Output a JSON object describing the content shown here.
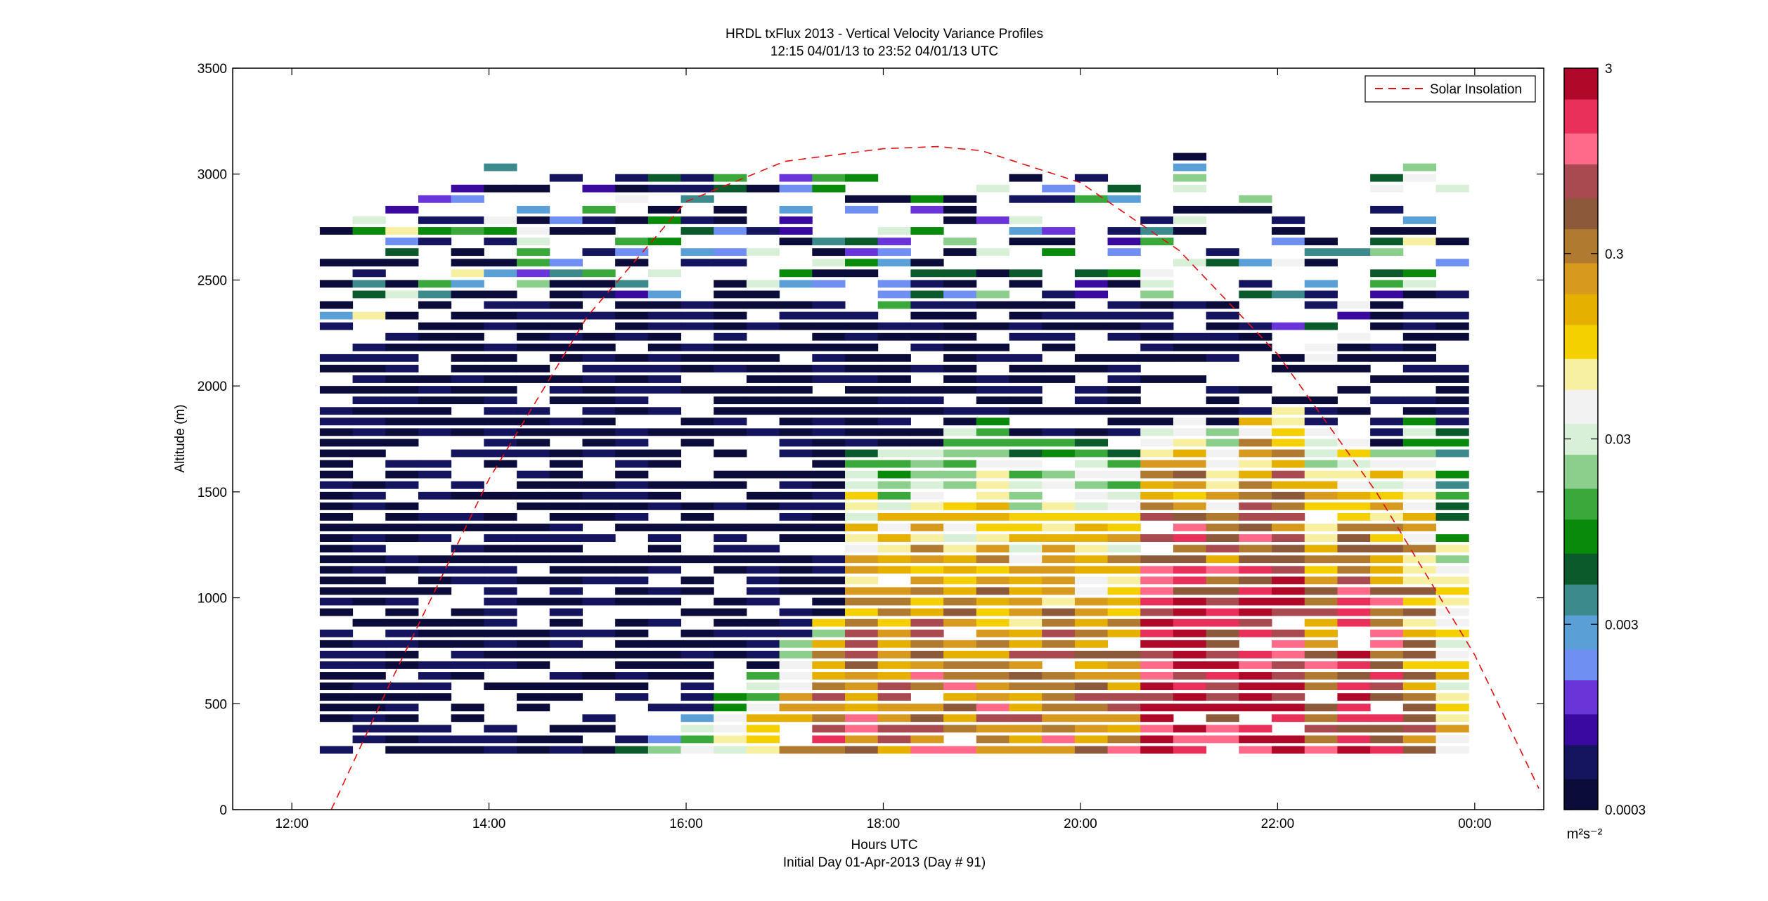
{
  "chart_data": {
    "type": "heatmap",
    "title": "HRDL txFlux 2013 - Vertical Velocity Variance Profiles",
    "subtitle": "12:15 04/01/13 to 23:52 04/01/13  UTC",
    "xlabel": "Hours UTC",
    "xlabel2": "Initial Day 01-Apr-2013 (Day # 91)",
    "ylabel": "Altitude (m)",
    "xlim": [
      11.4,
      24.7
    ],
    "ylim": [
      0,
      3500
    ],
    "x_ticks": [
      12,
      14,
      16,
      18,
      20,
      22,
      24
    ],
    "x_tick_labels": [
      "12:00",
      "14:00",
      "16:00",
      "18:00",
      "20:00",
      "22:00",
      "00:00"
    ],
    "y_ticks": [
      0,
      500,
      1000,
      1500,
      2000,
      2500,
      3000,
      3500
    ],
    "y_tick_labels": [
      "0",
      "500",
      "1000",
      "1500",
      "2000",
      "2500",
      "3000",
      "3500"
    ],
    "grid": false,
    "colorbar": {
      "scale": "log",
      "range": [
        0.0003,
        3
      ],
      "ticks": [
        0.0003,
        0.003,
        0.03,
        0.3,
        3
      ],
      "tick_labels": [
        "0.0003",
        "0.003",
        "0.03",
        "0.3",
        "3"
      ],
      "unit_label": "m²s⁻²",
      "colors": [
        "#0c0c3a",
        "#15145e",
        "#3a0aa0",
        "#6a35d8",
        "#6f8ff2",
        "#5aa0d6",
        "#3d8a8c",
        "#0a5a2c",
        "#0a8a0a",
        "#3aa83a",
        "#8ccf8c",
        "#d8efd8",
        "#f2f2f2",
        "#f7f0a0",
        "#f4d000",
        "#e6b000",
        "#d79a1e",
        "#b07a30",
        "#8c5a3a",
        "#a84a50",
        "#ff6a8a",
        "#e8305a",
        "#b00828"
      ]
    },
    "profiles": {
      "x_start": 12.45,
      "x_step": 0.333,
      "z_start": 250,
      "z_step": 50,
      "max_tops": [
        2750,
        2800,
        2850,
        2950,
        2950,
        3050,
        2950,
        3100,
        3000,
        3000,
        3000,
        3000,
        3050,
        3050,
        3000,
        3000,
        3000,
        2950,
        2950,
        3000,
        3000,
        3000,
        3050,
        3000,
        3000,
        2950,
        3100,
        3000,
        2900,
        2800,
        2700,
        2800,
        3000,
        3050,
        3050
      ],
      "mixed_layer_tops": [
        0,
        0,
        0,
        0,
        0,
        0,
        0,
        0,
        0,
        300,
        350,
        450,
        550,
        650,
        800,
        900,
        1700,
        1700,
        1700,
        1800,
        1850,
        1750,
        1750,
        1750,
        1700,
        1800,
        1850,
        1800,
        1850,
        1900,
        1800,
        1750,
        1700,
        1850,
        1800
      ],
      "peak_log10_variance": [
        -3.5,
        -3.5,
        -3.5,
        -3.5,
        -3.5,
        -3.5,
        -3.5,
        -3.5,
        -3.5,
        -2.1,
        -2.0,
        -1.6,
        -1.3,
        -1.0,
        -0.6,
        -0.1,
        -0.4,
        -0.4,
        -0.2,
        -0.4,
        -0.4,
        -0.5,
        -0.4,
        -0.6,
        -0.4,
        0.4,
        0.3,
        0.0,
        0.4,
        0.4,
        -0.2,
        0.2,
        0.0,
        -0.5,
        -1.0
      ]
    },
    "series": [
      {
        "name": "Solar Insolation",
        "style": "dashed",
        "color": "#e01010",
        "x": [
          12.4,
          13.0,
          14.0,
          15.0,
          16.0,
          17.0,
          18.0,
          18.55,
          19.0,
          20.0,
          21.0,
          22.0,
          23.0,
          24.0,
          24.65
        ],
        "y": [
          0,
          600,
          1560,
          2330,
          2870,
          3060,
          3120,
          3130,
          3110,
          2960,
          2640,
          2150,
          1500,
          730,
          100
        ]
      }
    ],
    "legend": {
      "placement": "top-right",
      "entries": [
        "Solar Insolation"
      ]
    }
  }
}
